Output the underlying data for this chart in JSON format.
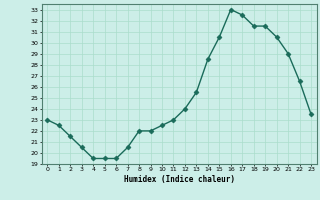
{
  "x": [
    0,
    1,
    2,
    3,
    4,
    5,
    6,
    7,
    8,
    9,
    10,
    11,
    12,
    13,
    14,
    15,
    16,
    17,
    18,
    19,
    20,
    21,
    22,
    23
  ],
  "y": [
    23.0,
    22.5,
    21.5,
    20.5,
    19.5,
    19.5,
    19.5,
    20.5,
    22.0,
    22.0,
    22.5,
    23.0,
    24.0,
    25.5,
    28.5,
    30.5,
    33.0,
    32.5,
    31.5,
    31.5,
    30.5,
    29.0,
    26.5,
    23.5
  ],
  "xlabel": "Humidex (Indice chaleur)",
  "ylim": [
    19,
    33.5
  ],
  "xlim": [
    -0.5,
    23.5
  ],
  "bg_color": "#cceee8",
  "line_color": "#1a6b5a",
  "grid_color": "#aaddcc",
  "yticks": [
    19,
    20,
    21,
    22,
    23,
    24,
    25,
    26,
    27,
    28,
    29,
    30,
    31,
    32,
    33
  ],
  "xticks": [
    0,
    1,
    2,
    3,
    4,
    5,
    6,
    7,
    8,
    9,
    10,
    11,
    12,
    13,
    14,
    15,
    16,
    17,
    18,
    19,
    20,
    21,
    22,
    23
  ]
}
